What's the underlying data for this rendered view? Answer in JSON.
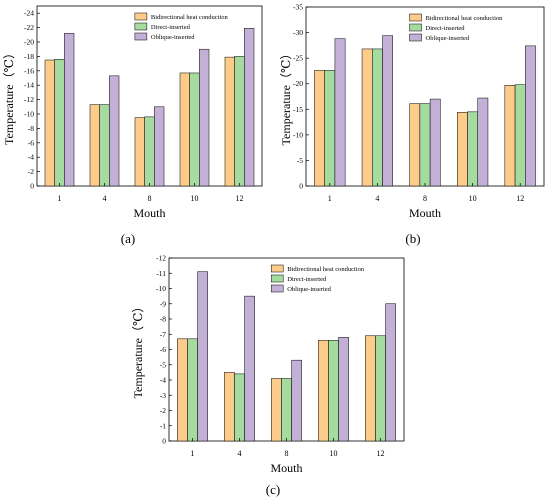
{
  "chart_data": [
    {
      "type": "bar",
      "panel_label": "(a)",
      "xlabel": "Mouth",
      "ylabel": "Temperature（℃）",
      "categories": [
        "1",
        "4",
        "8",
        "10",
        "12"
      ],
      "ylim": [
        0,
        -25
      ],
      "yticks": [
        "0",
        "-2",
        "-4",
        "-6",
        "-8",
        "-10",
        "-12",
        "-14",
        "-16",
        "-18",
        "-20",
        "-22",
        "-24"
      ],
      "grid": false,
      "legend_position": "top-right",
      "series": [
        {
          "name": "Bidirectional heat conduction",
          "color": "#fdcc8a",
          "values": [
            -17.5,
            -11.3,
            -9.5,
            -15.7,
            -17.9
          ]
        },
        {
          "name": "Direct-inserted",
          "color": "#a6dba0",
          "values": [
            -17.6,
            -11.3,
            -9.6,
            -15.7,
            -18.0
          ]
        },
        {
          "name": "Oblique-inserted",
          "color": "#c2b0d6",
          "values": [
            -21.2,
            -15.3,
            -11.0,
            -19.0,
            -21.9
          ]
        }
      ]
    },
    {
      "type": "bar",
      "panel_label": "(b)",
      "xlabel": "Mouth",
      "ylabel": "Temperature（℃）",
      "categories": [
        "1",
        "4",
        "8",
        "10",
        "12"
      ],
      "ylim": [
        0,
        -35
      ],
      "yticks": [
        "0",
        "-5",
        "-10",
        "-15",
        "-20",
        "-25",
        "-30",
        "-35"
      ],
      "grid": false,
      "legend_position": "top-right",
      "series": [
        {
          "name": "Bidirectional heat conduction",
          "color": "#fdcc8a",
          "values": [
            -22.6,
            -26.8,
            -16.1,
            -14.4,
            -19.7
          ]
        },
        {
          "name": "Direct-inserted",
          "color": "#a6dba0",
          "values": [
            -22.6,
            -26.8,
            -16.1,
            -14.5,
            -19.8
          ]
        },
        {
          "name": "Oblique-inserted",
          "color": "#c2b0d6",
          "values": [
            -28.8,
            -29.4,
            -17.0,
            -17.2,
            -27.4
          ]
        }
      ]
    },
    {
      "type": "bar",
      "panel_label": "(c)",
      "xlabel": "Mouth",
      "ylabel": "Temperature（℃）",
      "categories": [
        "1",
        "4",
        "8",
        "10",
        "12"
      ],
      "ylim": [
        0,
        -12
      ],
      "yticks": [
        "0",
        "-1",
        "-2",
        "-3",
        "-4",
        "-5",
        "-6",
        "-7",
        "-8",
        "-9",
        "-10",
        "-11",
        "-12"
      ],
      "grid": false,
      "legend_position": "top-right",
      "series": [
        {
          "name": "Bidirectional heat conduction",
          "color": "#fdcc8a",
          "values": [
            -6.7,
            -4.5,
            -4.1,
            -6.6,
            -6.9
          ]
        },
        {
          "name": "Direct-inserted",
          "color": "#a6dba0",
          "values": [
            -6.7,
            -4.4,
            -4.1,
            -6.6,
            -6.9
          ]
        },
        {
          "name": "Oblique-inserted",
          "color": "#c2b0d6",
          "values": [
            -11.1,
            -9.5,
            -5.3,
            -6.8,
            -9.0
          ]
        }
      ]
    }
  ]
}
